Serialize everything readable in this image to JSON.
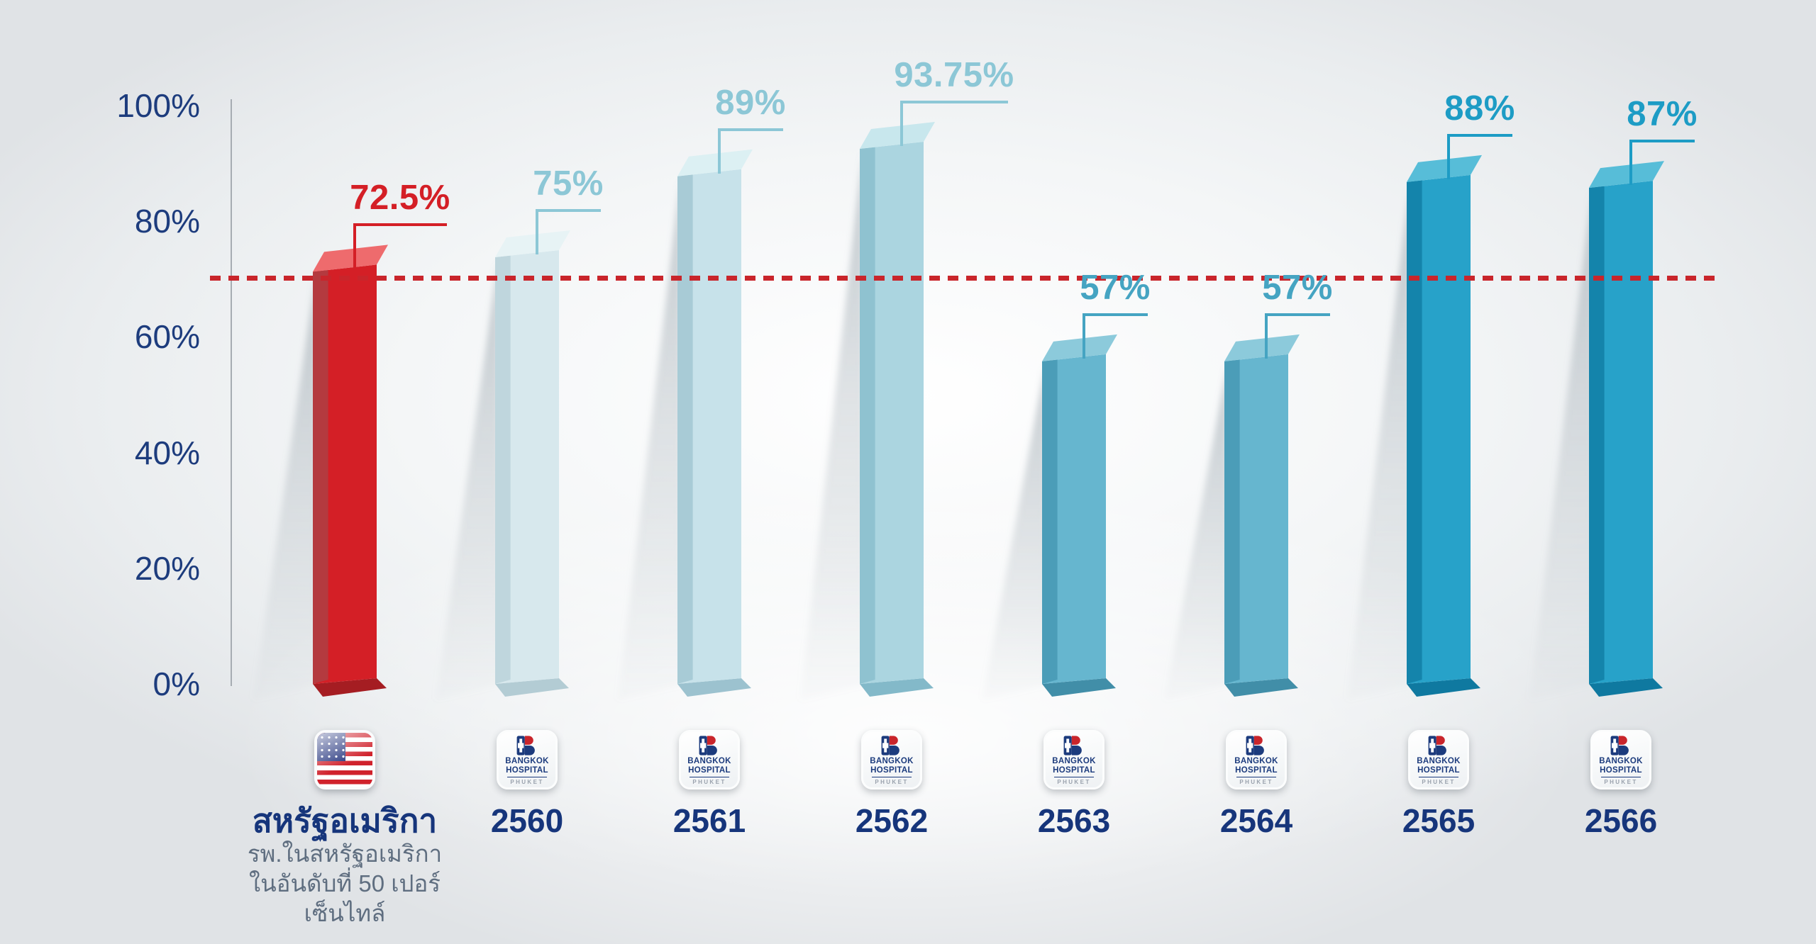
{
  "chart_data": {
    "type": "bar",
    "title": "",
    "xlabel": "",
    "ylabel": "",
    "ylim": [
      0,
      100
    ],
    "grid": false,
    "legend": "none",
    "y_axis_ticks": [
      {
        "label": "100%",
        "value": 100
      },
      {
        "label": "80%",
        "value": 80
      },
      {
        "label": "60%",
        "value": 60
      },
      {
        "label": "40%",
        "value": 40
      },
      {
        "label": "20%",
        "value": 20
      },
      {
        "label": "0%",
        "value": 0
      }
    ],
    "reference_line": {
      "value_pct": 70.2,
      "color": "#c9252b",
      "style": "dashed"
    },
    "categories": [
      "สหรัฐอเมริกา",
      "2560",
      "2561",
      "2562",
      "2563",
      "2564",
      "2565",
      "2566"
    ],
    "values": [
      72.5,
      75,
      89,
      93.75,
      57,
      57,
      88,
      87
    ],
    "bars": [
      {
        "category": "สหรัฐอเมริกา",
        "value": 72.5,
        "value_label": "72.5%",
        "icon": "usa-flag",
        "label_color": "#d41f26",
        "strip_color": "#b43a3f",
        "face_color": "#d41f26",
        "top_color": "#ee6b6d",
        "base_color": "#a51d22",
        "sub_lines": [
          "รพ.ในสหรัฐอเมริกา",
          "ในอันดับที่ 50 เปอร์เซ็นไทล์"
        ]
      },
      {
        "category": "2560",
        "value": 75,
        "value_label": "75%",
        "icon": "bangkok-hospital-logo",
        "label_color": "#8cc7d6",
        "strip_color": "#bfd6dd",
        "face_color": "#d7e8ed",
        "top_color": "#e7f3f5",
        "base_color": "#b3ccd4",
        "sub_lines": []
      },
      {
        "category": "2561",
        "value": 89,
        "value_label": "89%",
        "icon": "bangkok-hospital-logo",
        "label_color": "#8cc7d6",
        "strip_color": "#a8cbd6",
        "face_color": "#c7e2ea",
        "top_color": "#dcf0f3",
        "base_color": "#9cc2cf",
        "sub_lines": []
      },
      {
        "category": "2562",
        "value": 93.75,
        "value_label": "93.75%",
        "icon": "bangkok-hospital-logo",
        "label_color": "#8cc7d6",
        "strip_color": "#8fc2d0",
        "face_color": "#abd5e0",
        "top_color": "#c8e7ed",
        "base_color": "#83b9c9",
        "sub_lines": []
      },
      {
        "category": "2563",
        "value": 57,
        "value_label": "57%",
        "icon": "bangkok-hospital-logo",
        "label_color": "#45a4c2",
        "strip_color": "#4b9db8",
        "face_color": "#66b6cf",
        "top_color": "#8ccadb",
        "base_color": "#418ea8",
        "sub_lines": []
      },
      {
        "category": "2564",
        "value": 57,
        "value_label": "57%",
        "icon": "bangkok-hospital-logo",
        "label_color": "#45a4c2",
        "strip_color": "#4b9db8",
        "face_color": "#66b6cf",
        "top_color": "#8ccadb",
        "base_color": "#418ea8",
        "sub_lines": []
      },
      {
        "category": "2565",
        "value": 88,
        "value_label": "88%",
        "icon": "bangkok-hospital-logo",
        "label_color": "#1d9cc5",
        "strip_color": "#1484ab",
        "face_color": "#27a2c9",
        "top_color": "#57bdd8",
        "base_color": "#0f79a0",
        "sub_lines": []
      },
      {
        "category": "2566",
        "value": 87,
        "value_label": "87%",
        "icon": "bangkok-hospital-logo",
        "label_color": "#1d9cc5",
        "strip_color": "#1484ab",
        "face_color": "#27a2c9",
        "top_color": "#57bdd8",
        "base_color": "#0f79a0",
        "sub_lines": []
      }
    ],
    "logo_text": {
      "line1": "BANGKOK",
      "line2": "HOSPITAL",
      "line3": "PHUKET"
    },
    "colors": {
      "axis_label": "#1d3c7d",
      "category_label": "#16357b",
      "sub_text": "#5f6e80",
      "axis_line": "#a6acb2",
      "reference_line": "#c9252b",
      "shadow": "#8a949c"
    }
  }
}
